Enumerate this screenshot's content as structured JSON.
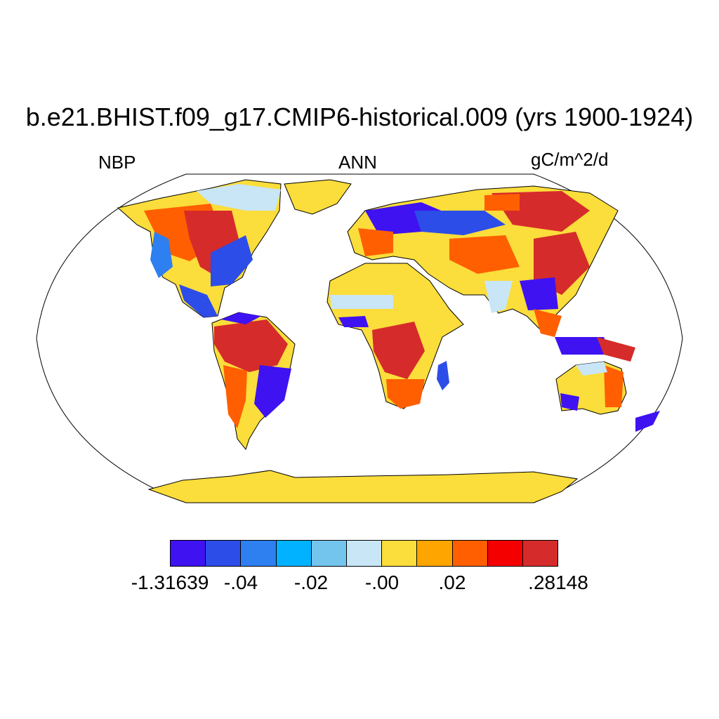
{
  "title": "b.e21.BHIST.f09_g17.CMIP6-historical.009 (yrs 1900-1924)",
  "labels": {
    "variable": "NBP",
    "season": "ANN",
    "units": "gC/m^2/d"
  },
  "colorbar": {
    "colors": [
      "#3f12f2",
      "#2c4de8",
      "#2e7ff0",
      "#00b2ff",
      "#74c5ee",
      "#c9e6f6",
      "#fbdd3b",
      "#ffa500",
      "#ff5f00",
      "#f40000",
      "#d62b2b"
    ],
    "tick_labels": [
      "-1.31639",
      "-.04",
      "-.02",
      "-.00",
      ".02",
      ".28148"
    ]
  },
  "regions": [
    {
      "name": "antarctica",
      "color": "#fbdd3b"
    },
    {
      "name": "greenland",
      "color": "#fbdd3b"
    },
    {
      "name": "north-america",
      "color": "#fbdd3b"
    },
    {
      "name": "south-america",
      "color": "#fbdd3b"
    },
    {
      "name": "africa",
      "color": "#fbdd3b"
    },
    {
      "name": "eurasia",
      "color": "#fbdd3b"
    },
    {
      "name": "australia",
      "color": "#fbdd3b"
    }
  ]
}
